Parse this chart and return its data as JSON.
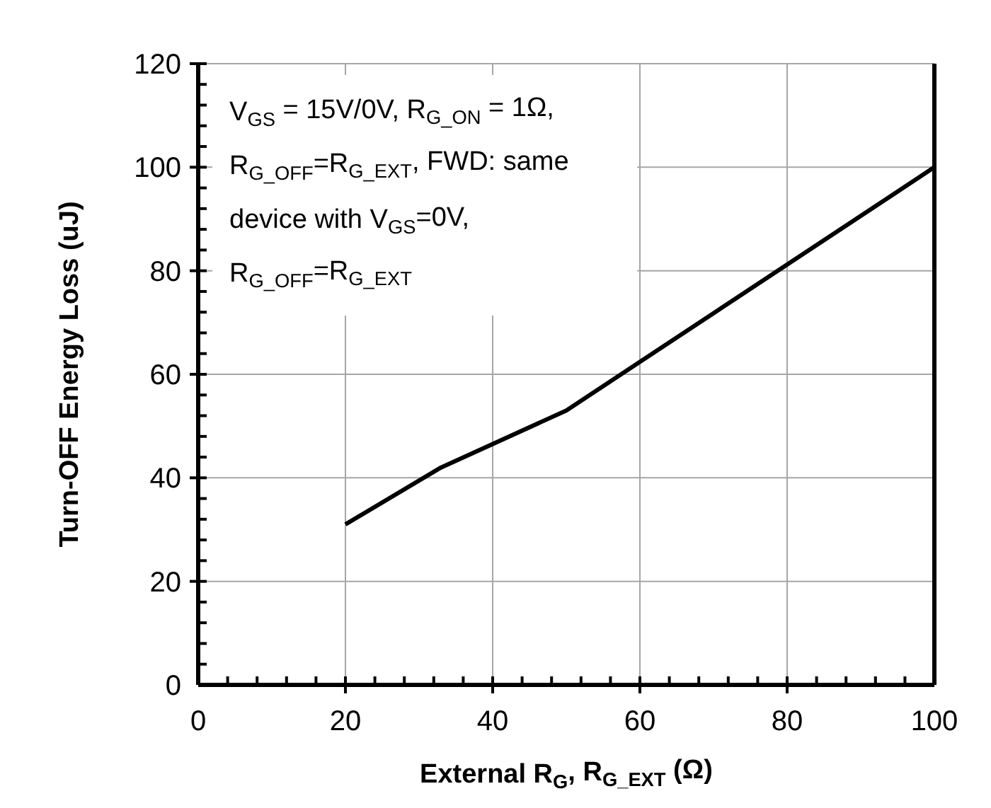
{
  "chart_data": {
    "type": "line",
    "xlabel": "External R$_{G}$, R$_{G_EXT}$ (Ω)",
    "ylabel": "Turn-OFF Energy Loss (uJ)",
    "x": [
      20,
      33,
      50,
      100
    ],
    "series": [
      {
        "color": "#000000",
        "values": [
          31,
          42,
          53,
          100
        ]
      }
    ],
    "xlim": [
      0,
      100
    ],
    "ylim": [
      0,
      120
    ],
    "xticks": [
      0,
      {
        "value": 4,
        "label": null
      },
      {
        "value": 8,
        "label": null
      },
      {
        "value": 12,
        "label": null
      },
      {
        "value": 16,
        "label": null
      },
      20,
      {
        "value": 24,
        "label": null
      },
      {
        "value": 28,
        "label": null
      },
      {
        "value": 32,
        "label": null
      },
      {
        "value": 36,
        "label": null
      },
      40,
      {
        "value": 44,
        "label": null
      },
      {
        "value": 48,
        "label": null
      },
      {
        "value": 52,
        "label": null
      },
      {
        "value": 56,
        "label": null
      },
      60,
      {
        "value": 64,
        "label": null
      },
      {
        "value": 68,
        "label": null
      },
      {
        "value": 72,
        "label": null
      },
      {
        "value": 76,
        "label": null
      },
      80,
      {
        "value": 84,
        "label": null
      },
      {
        "value": 88,
        "label": null
      },
      {
        "value": 92,
        "label": null
      },
      {
        "value": 96,
        "label": null
      },
      100
    ],
    "yticks": [
      0,
      {
        "value": 4,
        "label": null
      },
      {
        "value": 8,
        "label": null
      },
      {
        "value": 12,
        "label": null
      },
      {
        "value": 16,
        "label": null
      },
      20,
      {
        "value": 24,
        "label": null
      },
      {
        "value": 28,
        "label": null
      },
      {
        "value": 32,
        "label": null
      },
      {
        "value": 36,
        "label": null
      },
      40,
      {
        "value": 44,
        "label": null
      },
      {
        "value": 48,
        "label": null
      },
      {
        "value": 52,
        "label": null
      },
      {
        "value": 56,
        "label": null
      },
      60,
      {
        "value": 64,
        "label": null
      },
      {
        "value": 68,
        "label": null
      },
      {
        "value": 72,
        "label": null
      },
      {
        "value": 76,
        "label": null
      },
      80,
      {
        "value": 84,
        "label": null
      },
      {
        "value": 88,
        "label": null
      },
      {
        "value": 92,
        "label": null
      },
      {
        "value": 96,
        "label": null
      },
      100,
      {
        "value": 104,
        "label": null
      },
      {
        "value": 108,
        "label": null
      },
      {
        "value": 112,
        "label": null
      },
      {
        "value": 116,
        "label": null
      },
      120
    ],
    "grid": true,
    "line_style": "solid",
    "marker": "none",
    "annotations": [
      "V$_{GS}$ = 15V/0V,  R$_{G_ON}$ = 1Ω,",
      "R$_{G_OFF}$=R$_{G_EXT}$,  FWD: same",
      "device with V$_{GS}$=0V,",
      "R$_{G_OFF}$=R$_{G_EXT}$"
    ]
  }
}
